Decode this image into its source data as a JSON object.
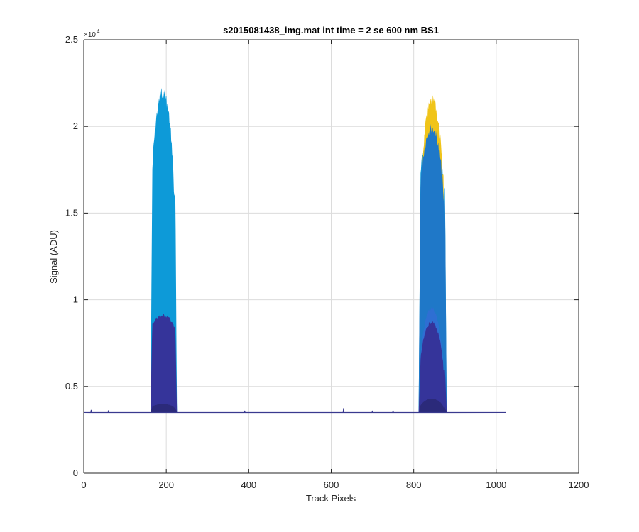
{
  "chart_data": {
    "type": "area",
    "title": "s2015081438_img.mat int time = 2 se  600 nm BS1",
    "xlabel": "Track Pixels",
    "ylabel": "Signal (ADU)",
    "xlim": [
      0,
      1200
    ],
    "ylim": [
      0,
      25000
    ],
    "xticks": [
      0,
      200,
      400,
      600,
      800,
      1000,
      1200
    ],
    "xtick_labels": [
      "0",
      "200",
      "400",
      "600",
      "800",
      "1000",
      "1200"
    ],
    "yticks": [
      0,
      5000,
      10000,
      15000,
      20000,
      25000
    ],
    "ytick_labels": [
      "0",
      "0.5",
      "1",
      "1.5",
      "2",
      "2.5"
    ],
    "y_exponent_label": "×10",
    "y_exponent_power": "4",
    "grid": true,
    "baseline": {
      "value": 3500,
      "x_range": [
        0,
        1024
      ],
      "color": "#3a3a8f",
      "spikes": [
        [
          18,
          3650
        ],
        [
          60,
          3620
        ],
        [
          390,
          3600
        ],
        [
          630,
          3750
        ],
        [
          700,
          3600
        ],
        [
          750,
          3600
        ]
      ]
    },
    "series": [
      {
        "color": "#0d9ad8",
        "peaks": [
          {
            "x_start": 162,
            "x_end": 226,
            "peak": 22300,
            "shoulder_left": 16500
          },
          {
            "x_start": 812,
            "x_end": 880,
            "peak": 20500,
            "shoulder_left": 16500
          }
        ]
      },
      {
        "color": "#f0c419",
        "peaks": [
          {
            "x_start": 818,
            "x_end": 876,
            "peak": 21800,
            "shoulder_left": 17500
          }
        ]
      },
      {
        "color": "#1f78c8",
        "peaks": [
          {
            "x_start": 812,
            "x_end": 880,
            "peak": 20200,
            "shoulder_left": 16000
          }
        ]
      },
      {
        "color": "#2e6fd3",
        "peaks": [
          {
            "x_start": 812,
            "x_end": 880,
            "peak": 9600,
            "shoulder_left": 6000
          }
        ]
      },
      {
        "color": "#35349a",
        "peaks": [
          {
            "x_start": 162,
            "x_end": 226,
            "peak": 9200,
            "shoulder_left": 8500
          },
          {
            "x_start": 812,
            "x_end": 880,
            "peak": 8800,
            "shoulder_left": 6000
          }
        ]
      },
      {
        "color": "#2b2a7a",
        "peaks": [
          {
            "x_start": 162,
            "x_end": 226,
            "peak": 4000,
            "shoulder_left": 3800
          },
          {
            "x_start": 812,
            "x_end": 880,
            "peak": 4300,
            "shoulder_left": 3800
          }
        ]
      }
    ]
  }
}
